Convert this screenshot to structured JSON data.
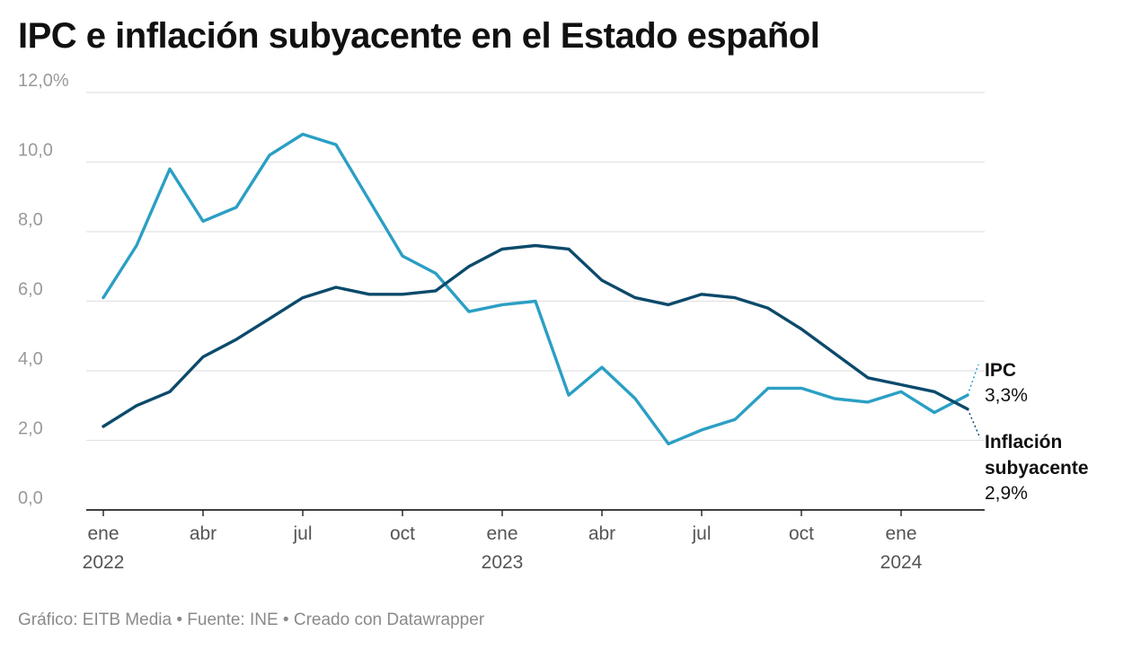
{
  "title": "IPC e inflación subyacente en el Estado español",
  "footer": {
    "text": "Gráfico: EITB Media • Fuente: INE • Creado con Datawrapper"
  },
  "colors": {
    "ipc": "#2b9fc4",
    "subyacente": "#0b4a6b",
    "grid": "#e2e2e2",
    "axis": "#222222",
    "tick_text": "#9a9a9a"
  },
  "chart_data": {
    "type": "line",
    "title": "IPC e inflación subyacente en el Estado español",
    "xlabel": "",
    "ylabel": "",
    "ylim": [
      0,
      12
    ],
    "y_ticks": [
      "0,0",
      "2,0",
      "4,0",
      "6,0",
      "8,0",
      "10,0",
      "12,0%"
    ],
    "x_ticks": [
      {
        "month_index": 0,
        "line1": "ene",
        "line2": "2022"
      },
      {
        "month_index": 3,
        "line1": "abr",
        "line2": ""
      },
      {
        "month_index": 6,
        "line1": "jul",
        "line2": ""
      },
      {
        "month_index": 9,
        "line1": "oct",
        "line2": ""
      },
      {
        "month_index": 12,
        "line1": "ene",
        "line2": "2023"
      },
      {
        "month_index": 15,
        "line1": "abr",
        "line2": ""
      },
      {
        "month_index": 18,
        "line1": "jul",
        "line2": ""
      },
      {
        "month_index": 21,
        "line1": "oct",
        "line2": ""
      },
      {
        "month_index": 24,
        "line1": "ene",
        "line2": "2024"
      }
    ],
    "x": [
      "2022-01",
      "2022-02",
      "2022-03",
      "2022-04",
      "2022-05",
      "2022-06",
      "2022-07",
      "2022-08",
      "2022-09",
      "2022-10",
      "2022-11",
      "2022-12",
      "2023-01",
      "2023-02",
      "2023-03",
      "2023-04",
      "2023-05",
      "2023-06",
      "2023-07",
      "2023-08",
      "2023-09",
      "2023-10",
      "2023-11",
      "2023-12",
      "2024-01",
      "2024-02",
      "2024-03"
    ],
    "series": [
      {
        "name": "IPC",
        "label_name": "IPC",
        "label_value": "3,3%",
        "color_key": "ipc",
        "values": [
          6.1,
          7.6,
          9.8,
          8.3,
          8.7,
          10.2,
          10.8,
          10.5,
          8.9,
          7.3,
          6.8,
          5.7,
          5.9,
          6.0,
          3.3,
          4.1,
          3.2,
          1.9,
          2.3,
          2.6,
          3.5,
          3.5,
          3.2,
          3.1,
          3.4,
          2.8,
          3.3
        ]
      },
      {
        "name": "Inflación subyacente",
        "label_name_line1": "Inflación",
        "label_name_line2": "subyacente",
        "label_value": "2,9%",
        "color_key": "subyacente",
        "values": [
          2.4,
          3.0,
          3.4,
          4.4,
          4.9,
          5.5,
          6.1,
          6.4,
          6.2,
          6.2,
          6.3,
          7.0,
          7.5,
          7.6,
          7.5,
          6.6,
          6.1,
          5.9,
          6.2,
          6.1,
          5.8,
          5.2,
          4.5,
          3.8,
          3.6,
          3.4,
          2.9
        ]
      }
    ]
  }
}
